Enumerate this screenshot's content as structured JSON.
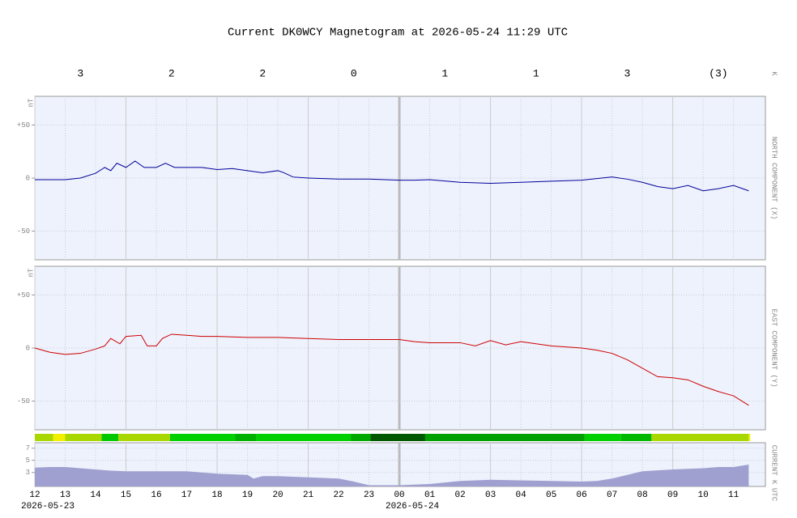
{
  "title": "Current DK0WCY Magnetogram at 2026-05-24 11:29 UTC",
  "k_index": {
    "label": "K",
    "values": [
      3,
      2,
      2,
      0,
      1,
      1,
      3,
      3
    ],
    "value_labels": [
      "3",
      "2",
      "2",
      "0",
      "1",
      "1",
      "3",
      "(3)"
    ]
  },
  "chart_data": [
    {
      "type": "line",
      "ylabel": "NORTH COMPONENT (X)",
      "unit": "nT",
      "xlim": [
        0,
        24.05
      ],
      "ylim": [
        -77,
        77
      ],
      "yticks": [
        {
          "value": 50,
          "label": "+50"
        },
        0,
        -50
      ],
      "grid": true,
      "x": [
        0,
        1,
        1.5,
        2,
        2.3,
        2.5,
        2.7,
        3,
        3.3,
        3.6,
        4,
        4.3,
        4.6,
        5,
        5.5,
        6,
        6.5,
        7,
        7.5,
        8,
        8.2,
        8.5,
        9,
        10,
        11,
        12,
        12.5,
        13,
        14,
        15,
        16,
        17,
        18,
        19,
        19.5,
        20,
        20.5,
        21,
        21.5,
        22,
        22.5,
        23,
        23.5
      ],
      "series": [
        {
          "color": "#000099",
          "values": [
            -1.5,
            -1.5,
            0,
            4.5,
            10,
            7,
            14,
            10,
            16,
            10,
            10,
            14,
            10,
            10,
            10,
            8,
            9,
            7,
            5,
            7,
            5,
            1,
            0,
            -1,
            -1,
            -2,
            -2,
            -1.5,
            -4,
            -5,
            -4,
            -3,
            -2,
            1,
            -1,
            -4,
            -8,
            -10,
            -7,
            -12,
            -10,
            -7,
            -12
          ]
        }
      ]
    },
    {
      "type": "line",
      "ylabel": "EAST COMPONENT (Y)",
      "unit": "nT",
      "xlim": [
        0,
        24.05
      ],
      "ylim": [
        -77,
        77
      ],
      "yticks": [
        {
          "value": 50,
          "label": "+50"
        },
        0,
        -50
      ],
      "grid": true,
      "x": [
        0,
        0.5,
        1,
        1.5,
        2,
        2.3,
        2.5,
        2.8,
        3,
        3.5,
        3.7,
        4,
        4.2,
        4.5,
        5,
        5.5,
        6,
        7,
        8,
        9,
        10,
        11,
        12,
        12.5,
        13,
        14,
        14.5,
        15,
        15.5,
        16,
        16.5,
        17,
        18,
        18.5,
        19,
        19.5,
        20,
        20.5,
        21,
        21.5,
        22,
        22.5,
        23,
        23.5
      ],
      "series": [
        {
          "color": "#cc0000",
          "values": [
            0,
            -4,
            -6,
            -5,
            -1,
            2,
            9,
            4,
            11,
            12,
            2,
            2,
            9,
            13,
            12,
            11,
            11,
            10,
            10,
            9,
            8,
            8,
            8,
            6,
            5,
            5,
            2,
            7,
            3,
            6,
            4,
            2,
            0,
            -2,
            -5,
            -11,
            -19,
            -27,
            -28,
            -30,
            -36,
            -41,
            -45,
            -54
          ]
        }
      ]
    },
    {
      "type": "area",
      "ylabel": "CURRENT K",
      "xlabel": "UTC",
      "xlim": [
        0,
        24.05
      ],
      "ylim": [
        0.7,
        7.9
      ],
      "yticks": [
        3,
        5,
        7
      ],
      "grid": true,
      "xticks": [
        {
          "value": 0,
          "label": "12"
        },
        {
          "value": 1,
          "label": "13"
        },
        {
          "value": 2,
          "label": "14"
        },
        {
          "value": 3,
          "label": "15"
        },
        {
          "value": 4,
          "label": "16"
        },
        {
          "value": 5,
          "label": "17"
        },
        {
          "value": 6,
          "label": "18"
        },
        {
          "value": 7,
          "label": "19"
        },
        {
          "value": 8,
          "label": "20"
        },
        {
          "value": 9,
          "label": "21"
        },
        {
          "value": 10,
          "label": "22"
        },
        {
          "value": 11,
          "label": "23"
        },
        {
          "value": 12,
          "label": "00"
        },
        {
          "value": 13,
          "label": "01"
        },
        {
          "value": 14,
          "label": "02"
        },
        {
          "value": 15,
          "label": "03"
        },
        {
          "value": 16,
          "label": "04"
        },
        {
          "value": 17,
          "label": "05"
        },
        {
          "value": 18,
          "label": "06"
        },
        {
          "value": 19,
          "label": "07"
        },
        {
          "value": 20,
          "label": "08"
        },
        {
          "value": 21,
          "label": "09"
        },
        {
          "value": 22,
          "label": "10"
        },
        {
          "value": 23,
          "label": "11"
        }
      ],
      "dates": [
        {
          "value": 0,
          "label": "2026-05-23"
        },
        {
          "value": 12,
          "label": "2026-05-24"
        }
      ],
      "x": [
        0,
        0.5,
        1,
        1.5,
        2,
        2.5,
        3,
        4,
        5,
        6,
        7,
        7.2,
        7.5,
        8,
        9,
        10,
        10.5,
        11,
        12,
        13,
        14,
        15,
        16,
        17,
        18,
        18.5,
        19,
        19.5,
        20,
        21,
        22,
        22.5,
        23,
        23.5
      ],
      "color": "#a0a0d0",
      "values": [
        3.8,
        3.9,
        3.9,
        3.7,
        3.5,
        3.3,
        3.2,
        3.2,
        3.2,
        2.8,
        2.6,
        2.0,
        2.4,
        2.4,
        2.2,
        2.0,
        1.5,
        0.9,
        0.9,
        1.1,
        1.6,
        1.8,
        1.7,
        1.6,
        1.5,
        1.6,
        2.0,
        2.6,
        3.2,
        3.5,
        3.7,
        3.9,
        3.9,
        4.3
      ],
      "kbar": [
        {
          "start": 0,
          "end": 0.6,
          "color": "#a8d800"
        },
        {
          "start": 0.6,
          "end": 1,
          "color": "#f0f000"
        },
        {
          "start": 1,
          "end": 2.2,
          "color": "#a8d800"
        },
        {
          "start": 2.2,
          "end": 2.75,
          "color": "#00c800"
        },
        {
          "start": 2.75,
          "end": 4.45,
          "color": "#a8d800"
        },
        {
          "start": 4.45,
          "end": 6.6,
          "color": "#00d000"
        },
        {
          "start": 6.6,
          "end": 7.3,
          "color": "#00b000"
        },
        {
          "start": 7.3,
          "end": 10.4,
          "color": "#00d000"
        },
        {
          "start": 10.4,
          "end": 11.05,
          "color": "#00a800"
        },
        {
          "start": 11.05,
          "end": 12.85,
          "color": "#005800"
        },
        {
          "start": 12.85,
          "end": 18.1,
          "color": "#00a000"
        },
        {
          "start": 18.1,
          "end": 19.3,
          "color": "#00d000"
        },
        {
          "start": 19.3,
          "end": 20.3,
          "color": "#00b800"
        },
        {
          "start": 20.3,
          "end": 23.5,
          "color": "#a8d800"
        },
        {
          "start": 23.5,
          "end": 23.55,
          "color": "#f0f000"
        }
      ]
    }
  ]
}
